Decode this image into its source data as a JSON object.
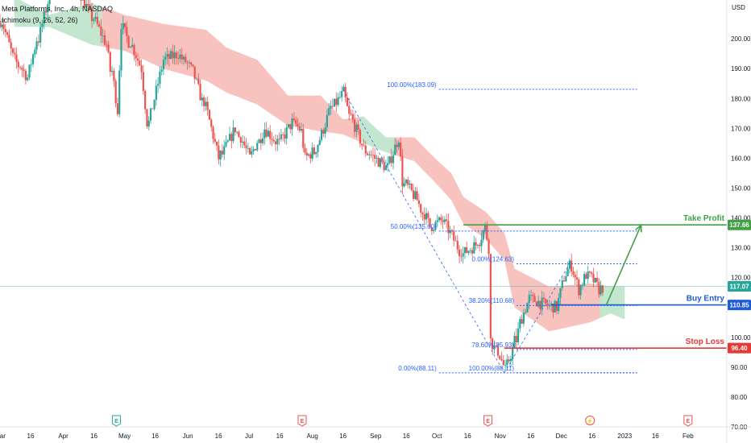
{
  "header": {
    "symbol_line": "Meta Platforms, Inc., 4h, NASDAQ",
    "indicator_line": "Ichimoku (9, 26, 52, 26)"
  },
  "colors": {
    "up": "#26a69a",
    "down": "#ef5350",
    "cloud_bear": "#f7b7b3",
    "cloud_bull": "#b9e3c6",
    "fib": "#2962ff",
    "take_profit": "#43a047",
    "buy_entry": "#1e5bd6",
    "stop_loss": "#e53935",
    "current": "#26a69a",
    "axis_text": "#131722"
  },
  "chart_data": {
    "type": "candlestick",
    "currency_label": "USD",
    "ylim": [
      70,
      213
    ],
    "y_ticks": [
      70,
      80,
      90,
      100,
      110,
      120,
      130,
      140,
      150,
      160,
      170,
      180,
      190,
      200
    ],
    "y_tick_labels": [
      "70.00",
      "80.00",
      "90.00",
      "100.00",
      "110.00",
      "120.00",
      "130.00",
      "140.00",
      "150.00",
      "160.00",
      "170.00",
      "180.00",
      "190.00",
      "200.00"
    ],
    "x_range": [
      "2022-03-01",
      "2023-02-20"
    ],
    "x_ticks": [
      {
        "date": "2022-03-01",
        "label": "Mar"
      },
      {
        "date": "2022-03-16",
        "label": "16"
      },
      {
        "date": "2022-04-01",
        "label": "Apr"
      },
      {
        "date": "2022-04-16",
        "label": "16"
      },
      {
        "date": "2022-05-01",
        "label": "May"
      },
      {
        "date": "2022-05-16",
        "label": "16"
      },
      {
        "date": "2022-06-01",
        "label": "Jun"
      },
      {
        "date": "2022-06-16",
        "label": "16"
      },
      {
        "date": "2022-07-01",
        "label": "Jul"
      },
      {
        "date": "2022-07-16",
        "label": "16"
      },
      {
        "date": "2022-08-01",
        "label": "Aug"
      },
      {
        "date": "2022-08-16",
        "label": "16"
      },
      {
        "date": "2022-09-01",
        "label": "Sep"
      },
      {
        "date": "2022-09-16",
        "label": "16"
      },
      {
        "date": "2022-10-01",
        "label": "Oct"
      },
      {
        "date": "2022-10-16",
        "label": "16"
      },
      {
        "date": "2022-11-01",
        "label": "Nov"
      },
      {
        "date": "2022-11-16",
        "label": "16"
      },
      {
        "date": "2022-12-01",
        "label": "Dec"
      },
      {
        "date": "2022-12-16",
        "label": "16"
      },
      {
        "date": "2023-01-01",
        "label": "2023"
      },
      {
        "date": "2023-01-16",
        "label": "16"
      },
      {
        "date": "2023-02-01",
        "label": "Feb"
      }
    ],
    "price_path": [
      {
        "date": "2022-03-01",
        "value": 206
      },
      {
        "date": "2022-03-07",
        "value": 194
      },
      {
        "date": "2022-03-14",
        "value": 187
      },
      {
        "date": "2022-03-21",
        "value": 205
      },
      {
        "date": "2022-03-28",
        "value": 222
      },
      {
        "date": "2022-04-08",
        "value": 216
      },
      {
        "date": "2022-04-22",
        "value": 198
      },
      {
        "date": "2022-04-27",
        "value": 176
      },
      {
        "date": "2022-04-29",
        "value": 205
      },
      {
        "date": "2022-05-09",
        "value": 190
      },
      {
        "date": "2022-05-12",
        "value": 172
      },
      {
        "date": "2022-05-20",
        "value": 193
      },
      {
        "date": "2022-05-27",
        "value": 195
      },
      {
        "date": "2022-06-03",
        "value": 189
      },
      {
        "date": "2022-06-10",
        "value": 175
      },
      {
        "date": "2022-06-16",
        "value": 160
      },
      {
        "date": "2022-06-24",
        "value": 170
      },
      {
        "date": "2022-07-01",
        "value": 160
      },
      {
        "date": "2022-07-08",
        "value": 170
      },
      {
        "date": "2022-07-15",
        "value": 165
      },
      {
        "date": "2022-07-22",
        "value": 172
      },
      {
        "date": "2022-07-26",
        "value": 169
      },
      {
        "date": "2022-07-28",
        "value": 160
      },
      {
        "date": "2022-08-01",
        "value": 162
      },
      {
        "date": "2022-08-05",
        "value": 168
      },
      {
        "date": "2022-08-10",
        "value": 177
      },
      {
        "date": "2022-08-16",
        "value": 182
      },
      {
        "date": "2022-08-19",
        "value": 174
      },
      {
        "date": "2022-08-26",
        "value": 163
      },
      {
        "date": "2022-08-31",
        "value": 160
      },
      {
        "date": "2022-09-06",
        "value": 157
      },
      {
        "date": "2022-09-12",
        "value": 167
      },
      {
        "date": "2022-09-14",
        "value": 152
      },
      {
        "date": "2022-09-21",
        "value": 146
      },
      {
        "date": "2022-09-27",
        "value": 137
      },
      {
        "date": "2022-10-03",
        "value": 139
      },
      {
        "date": "2022-10-07",
        "value": 135
      },
      {
        "date": "2022-10-13",
        "value": 128
      },
      {
        "date": "2022-10-20",
        "value": 131
      },
      {
        "date": "2022-10-24",
        "value": 137
      },
      {
        "date": "2022-10-26",
        "value": 130
      },
      {
        "date": "2022-10-27",
        "value": 99
      },
      {
        "date": "2022-10-31",
        "value": 94
      },
      {
        "date": "2022-11-03",
        "value": 89
      },
      {
        "date": "2022-11-07",
        "value": 96
      },
      {
        "date": "2022-11-10",
        "value": 105
      },
      {
        "date": "2022-11-15",
        "value": 113
      },
      {
        "date": "2022-11-22",
        "value": 111
      },
      {
        "date": "2022-11-28",
        "value": 110
      },
      {
        "date": "2022-12-02",
        "value": 120
      },
      {
        "date": "2022-12-05",
        "value": 124
      },
      {
        "date": "2022-12-09",
        "value": 116
      },
      {
        "date": "2022-12-13",
        "value": 121
      },
      {
        "date": "2022-12-16",
        "value": 119
      },
      {
        "date": "2022-12-19",
        "value": 116
      },
      {
        "date": "2022-12-22",
        "value": 117
      }
    ],
    "cloud_upper": [
      {
        "date": "2022-03-08",
        "value": 214
      },
      {
        "date": "2022-03-25",
        "value": 208
      },
      {
        "date": "2022-04-15",
        "value": 212
      },
      {
        "date": "2022-05-01",
        "value": 208
      },
      {
        "date": "2022-05-20",
        "value": 205
      },
      {
        "date": "2022-06-10",
        "value": 203
      },
      {
        "date": "2022-06-20",
        "value": 197
      },
      {
        "date": "2022-07-05",
        "value": 193
      },
      {
        "date": "2022-07-20",
        "value": 181
      },
      {
        "date": "2022-08-05",
        "value": 181
      },
      {
        "date": "2022-08-16",
        "value": 173
      },
      {
        "date": "2022-08-26",
        "value": 174
      },
      {
        "date": "2022-09-06",
        "value": 167
      },
      {
        "date": "2022-09-20",
        "value": 167
      },
      {
        "date": "2022-09-30",
        "value": 160
      },
      {
        "date": "2022-10-08",
        "value": 155
      },
      {
        "date": "2022-10-14",
        "value": 147
      },
      {
        "date": "2022-10-25",
        "value": 142
      },
      {
        "date": "2022-11-03",
        "value": 135
      },
      {
        "date": "2022-11-08",
        "value": 123
      },
      {
        "date": "2022-11-25",
        "value": 117
      },
      {
        "date": "2022-12-15",
        "value": 118
      },
      {
        "date": "2022-12-25",
        "value": 117
      },
      {
        "date": "2023-01-01",
        "value": 117
      }
    ],
    "cloud_lower": [
      {
        "date": "2022-03-08",
        "value": 204
      },
      {
        "date": "2022-03-25",
        "value": 204
      },
      {
        "date": "2022-04-15",
        "value": 198
      },
      {
        "date": "2022-05-01",
        "value": 196
      },
      {
        "date": "2022-05-20",
        "value": 190
      },
      {
        "date": "2022-06-10",
        "value": 186
      },
      {
        "date": "2022-06-20",
        "value": 182
      },
      {
        "date": "2022-07-05",
        "value": 178
      },
      {
        "date": "2022-07-20",
        "value": 171
      },
      {
        "date": "2022-08-05",
        "value": 169
      },
      {
        "date": "2022-08-16",
        "value": 168
      },
      {
        "date": "2022-08-26",
        "value": 165
      },
      {
        "date": "2022-09-06",
        "value": 162
      },
      {
        "date": "2022-09-20",
        "value": 159
      },
      {
        "date": "2022-09-30",
        "value": 152
      },
      {
        "date": "2022-10-08",
        "value": 146
      },
      {
        "date": "2022-10-14",
        "value": 138
      },
      {
        "date": "2022-10-25",
        "value": 133
      },
      {
        "date": "2022-11-03",
        "value": 126
      },
      {
        "date": "2022-11-08",
        "value": 110
      },
      {
        "date": "2022-11-25",
        "value": 102
      },
      {
        "date": "2022-12-15",
        "value": 105
      },
      {
        "date": "2022-12-25",
        "value": 108
      },
      {
        "date": "2023-01-01",
        "value": 106
      }
    ],
    "cloud_colors": [
      {
        "from": "2022-03-08",
        "to": "2022-04-20",
        "color": "bull"
      },
      {
        "from": "2022-04-20",
        "to": "2022-08-24",
        "color": "bear"
      },
      {
        "from": "2022-08-24",
        "to": "2022-09-10",
        "color": "bull"
      },
      {
        "from": "2022-09-10",
        "to": "2022-12-20",
        "color": "bear"
      },
      {
        "from": "2022-12-20",
        "to": "2023-01-01",
        "color": "bull"
      }
    ],
    "fib_upper": {
      "start_date": "2022-08-16",
      "anchor_date": "2022-10-02",
      "end_date": "2023-01-07",
      "levels": [
        {
          "value": 183.09,
          "label": "100.00%(183.09)"
        },
        {
          "value": 135.6,
          "label": "50.00%(135.60)"
        },
        {
          "value": 88.11,
          "label": "0.00%(88.11)"
        }
      ]
    },
    "fib_lower": {
      "anchor_date": "2022-11-09",
      "end_date": "2023-01-07",
      "levels": [
        {
          "value": 124.63,
          "label": "0.00%(124.63)"
        },
        {
          "value": 110.68,
          "label": "38.20%(110.68)"
        },
        {
          "value": 95.93,
          "label": "78.60%(95.93)"
        },
        {
          "value": 88.11,
          "label": "100.00%(88.11)"
        }
      ]
    },
    "fib_diagonals": [
      {
        "from": {
          "date": "2022-08-16",
          "value": 183
        },
        "to": {
          "date": "2022-11-03",
          "value": 88.11
        }
      },
      {
        "from": {
          "date": "2022-11-03",
          "value": 88.11
        },
        "to": {
          "date": "2022-12-05",
          "value": 124.63
        }
      }
    ],
    "trade_levels": [
      {
        "name": "Take Profit",
        "value": 137.66,
        "label": "137.66",
        "color_key": "take_profit",
        "start_date": "2022-10-14"
      },
      {
        "name": "Buy Entry",
        "value": 110.85,
        "label": "110.85",
        "color_key": "buy_entry",
        "start_date": "2022-11-26"
      },
      {
        "name": "Stop Loss",
        "value": 96.4,
        "label": "96.40",
        "color_key": "stop_loss",
        "start_date": "2022-11-03"
      }
    ],
    "current_price": {
      "value": 117.07,
      "label": "117.07"
    },
    "projection_arrow": {
      "from": {
        "date": "2022-12-23",
        "value": 110.9
      },
      "to": {
        "date": "2023-01-09",
        "value": 137.6
      }
    },
    "event_markers": [
      {
        "date": "2022-04-27",
        "type": "earnings",
        "glyph": "E"
      },
      {
        "date": "2022-07-27",
        "type": "earnings",
        "glyph": "E"
      },
      {
        "date": "2022-10-26",
        "type": "earnings",
        "glyph": "E"
      },
      {
        "date": "2022-12-15",
        "type": "dividend",
        "glyph": "⚡"
      },
      {
        "date": "2023-02-01",
        "type": "earnings",
        "glyph": "E"
      }
    ]
  }
}
